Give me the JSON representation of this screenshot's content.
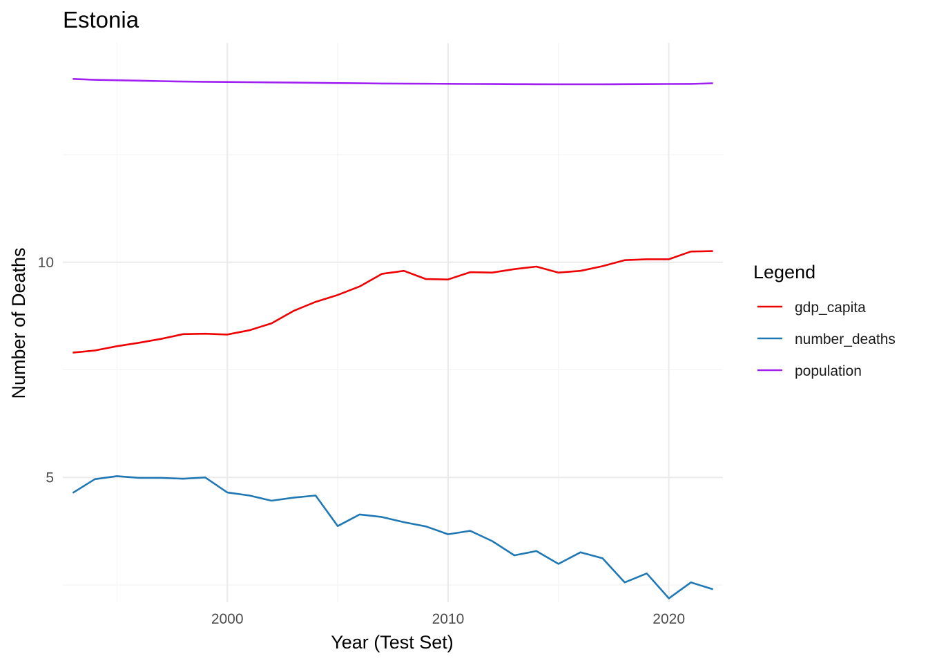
{
  "chart_data": {
    "type": "line",
    "title": "Estonia",
    "xlabel": "Year (Test Set)",
    "ylabel": "Number of Deaths",
    "xlim": [
      1992.55,
      2022.45
    ],
    "ylim": [
      2.1,
      15.1
    ],
    "x_ticks": [
      2000,
      2010,
      2020
    ],
    "x_tick_labels": [
      "2000",
      "2010",
      "2020"
    ],
    "x_minor_ticks": [
      1995,
      2005,
      2015
    ],
    "y_ticks": [
      5,
      10
    ],
    "y_tick_labels": [
      "5",
      "10"
    ],
    "y_minor_ticks": [
      2.5,
      7.5,
      12.5
    ],
    "grid": true,
    "legend": {
      "title": "Legend",
      "position": "right"
    },
    "x": [
      1993,
      1994,
      1995,
      1996,
      1997,
      1998,
      1999,
      2000,
      2001,
      2002,
      2003,
      2004,
      2005,
      2006,
      2007,
      2008,
      2009,
      2010,
      2011,
      2012,
      2013,
      2014,
      2015,
      2016,
      2017,
      2018,
      2019,
      2020,
      2021,
      2022
    ],
    "series": [
      {
        "name": "gdp_capita",
        "color": "#ee0000",
        "values": [
          7.9,
          7.95,
          8.05,
          8.13,
          8.22,
          8.33,
          8.34,
          8.32,
          8.42,
          8.58,
          8.87,
          9.08,
          9.24,
          9.44,
          9.73,
          9.8,
          9.61,
          9.6,
          9.77,
          9.76,
          9.84,
          9.9,
          9.76,
          9.8,
          9.91,
          10.05,
          10.07,
          10.07,
          10.25,
          10.26
        ]
      },
      {
        "name": "number_deaths",
        "color": "#1f78b4",
        "values": [
          4.64,
          4.96,
          5.03,
          4.99,
          4.99,
          4.97,
          5.0,
          4.65,
          4.58,
          4.46,
          4.53,
          4.58,
          3.87,
          4.14,
          4.08,
          3.96,
          3.86,
          3.68,
          3.76,
          3.52,
          3.19,
          3.29,
          2.99,
          3.26,
          3.12,
          2.56,
          2.77,
          2.19,
          2.56,
          2.4
        ]
      },
      {
        "name": "population",
        "color": "#a020f0",
        "values": [
          14.26,
          14.24,
          14.23,
          14.22,
          14.21,
          14.2,
          14.195,
          14.19,
          14.185,
          14.18,
          14.175,
          14.17,
          14.165,
          14.16,
          14.155,
          14.152,
          14.15,
          14.148,
          14.145,
          14.143,
          14.14,
          14.138,
          14.137,
          14.137,
          14.137,
          14.14,
          14.142,
          14.145,
          14.147,
          14.16
        ]
      }
    ]
  }
}
